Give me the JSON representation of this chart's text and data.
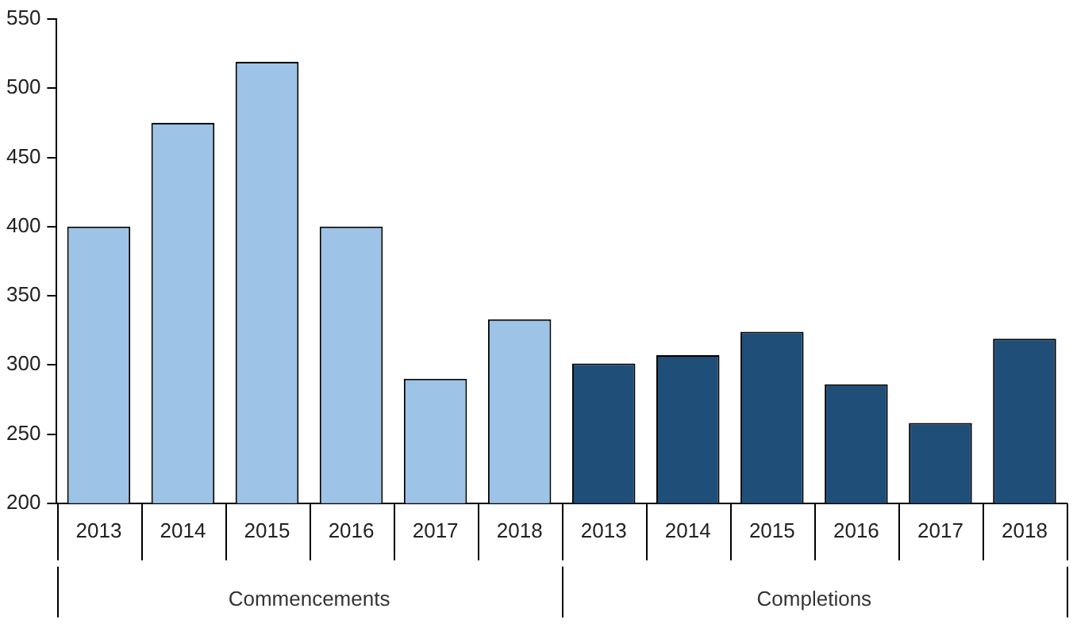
{
  "chart_data": {
    "type": "bar",
    "categories": [
      "2013",
      "2014",
      "2015",
      "2016",
      "2017",
      "2018",
      "2013",
      "2014",
      "2015",
      "2016",
      "2017",
      "2018"
    ],
    "series": [
      {
        "name": "Commencements",
        "color": "#9dc3e6",
        "values": [
          400,
          475,
          519,
          400,
          290,
          333,
          null,
          null,
          null,
          null,
          null,
          null
        ]
      },
      {
        "name": "Completions",
        "color": "#1f4e79",
        "values": [
          null,
          null,
          null,
          null,
          null,
          null,
          301,
          307,
          324,
          286,
          258,
          319
        ]
      }
    ],
    "ylim": [
      200,
      550
    ],
    "yticks": [
      200,
      250,
      300,
      350,
      400,
      450,
      500,
      550
    ],
    "grid": false,
    "legend": false
  }
}
